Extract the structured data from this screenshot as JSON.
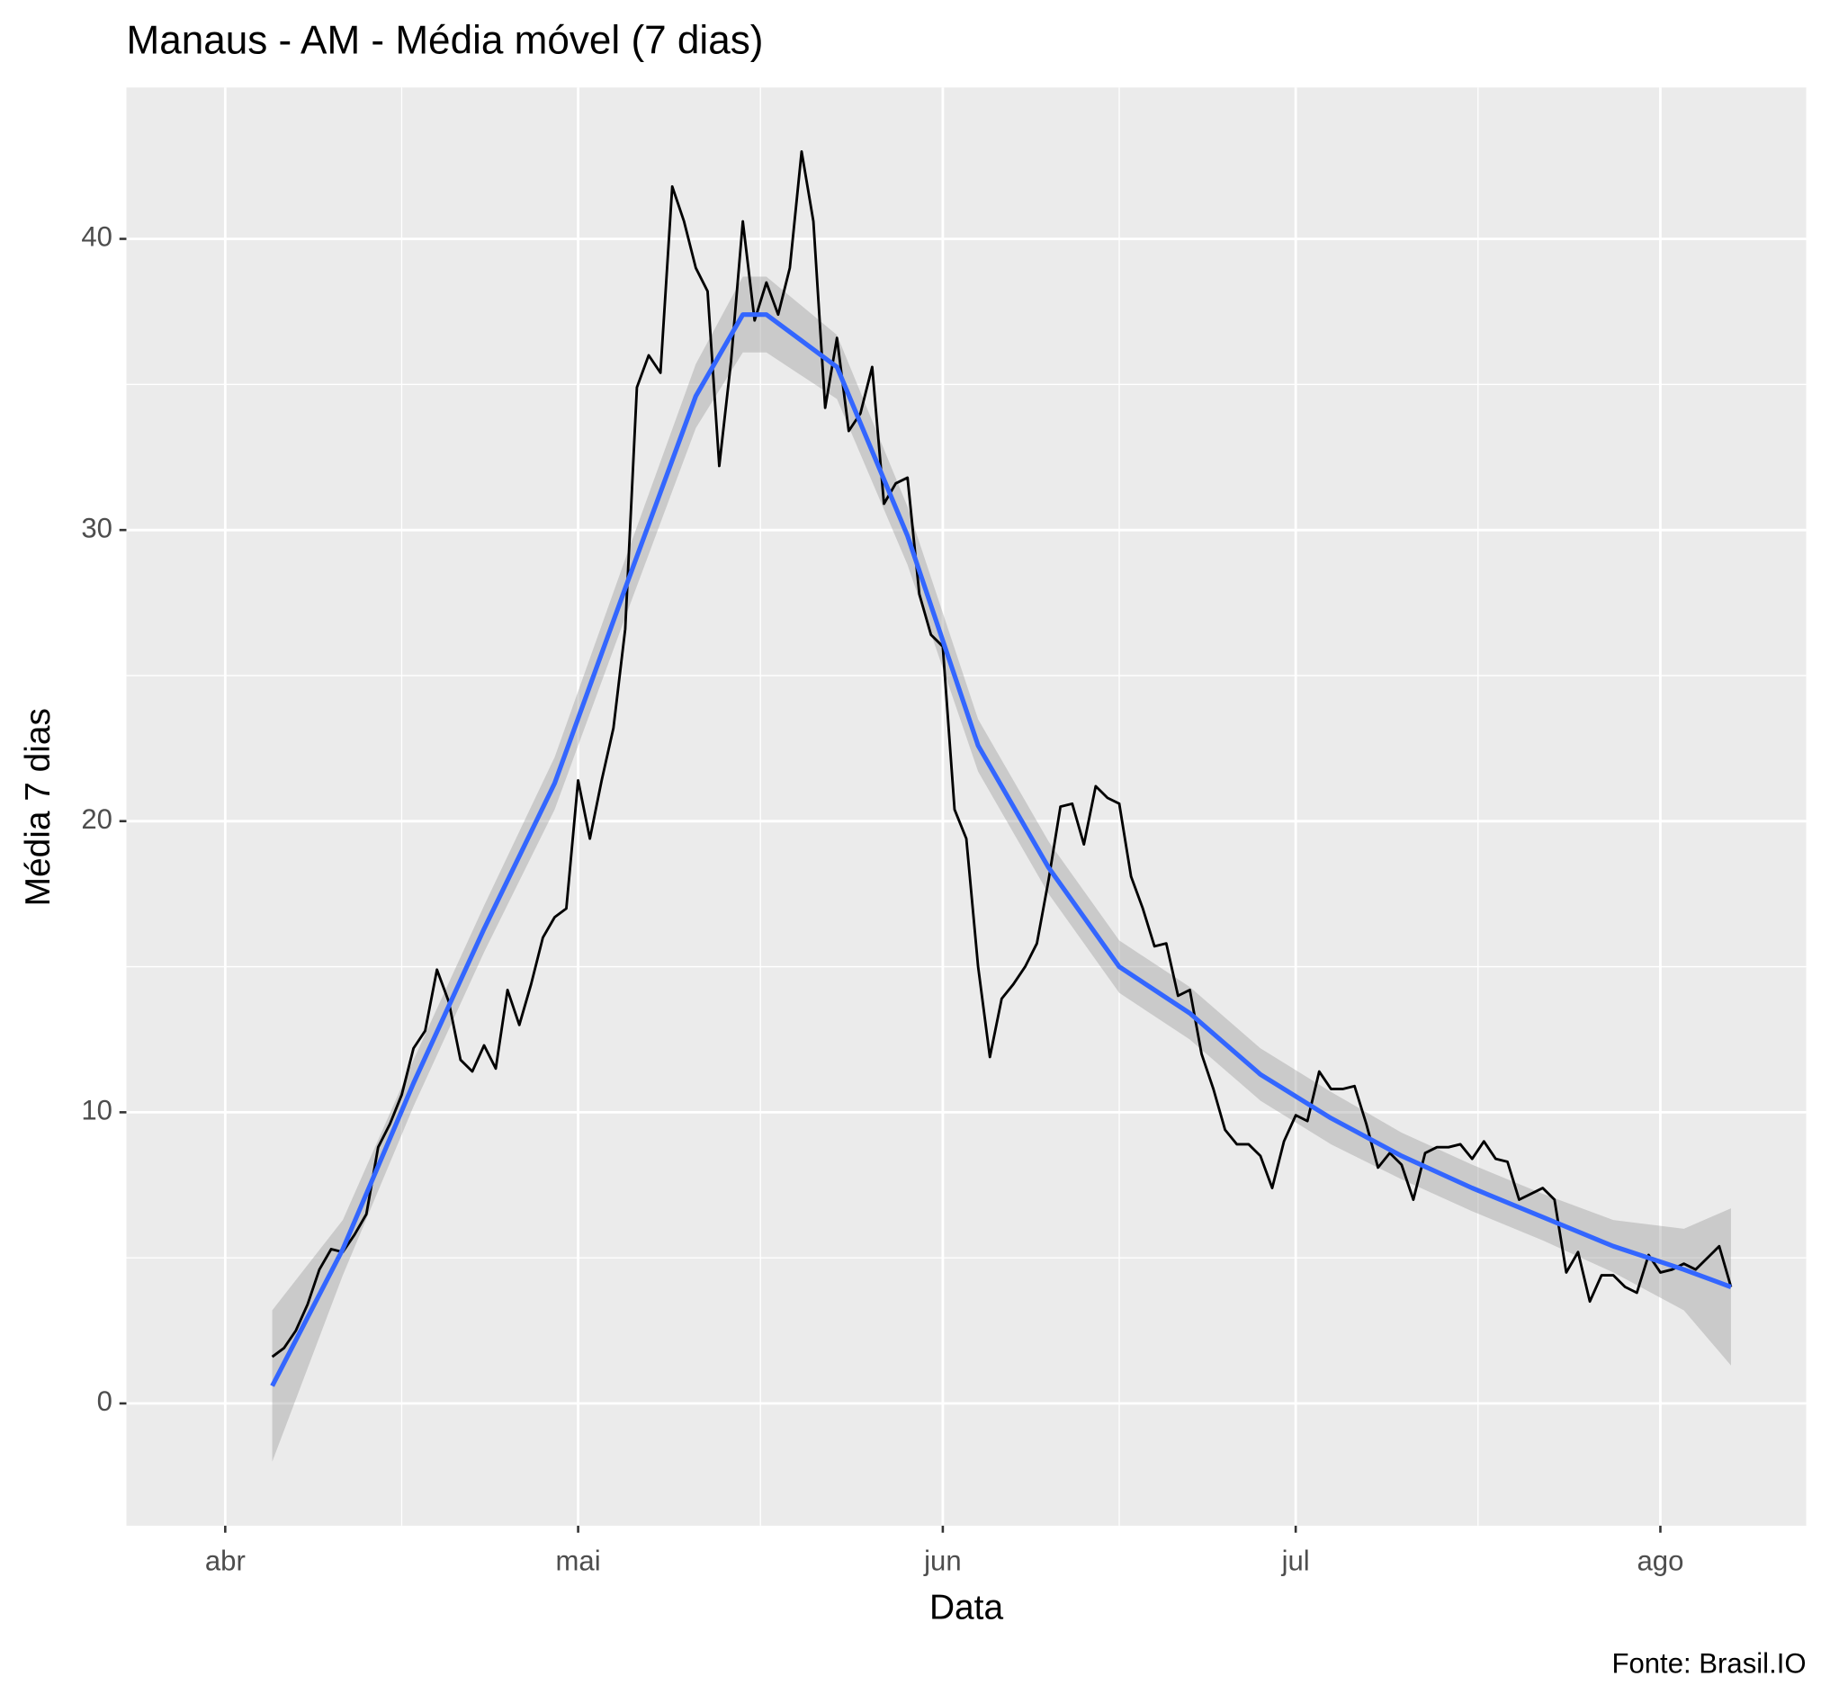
{
  "chart_data": {
    "type": "line",
    "title": "Manaus - AM - Média móvel (7 dias)",
    "x_label": "Data",
    "y_label": "Média 7 dias",
    "caption": "Fonte: Brasil.IO",
    "x": [
      4,
      5,
      6,
      7,
      8,
      9,
      10,
      11,
      12,
      13,
      14,
      15,
      16,
      17,
      18,
      19,
      20,
      21,
      22,
      23,
      24,
      25,
      26,
      27,
      28,
      29,
      30,
      31,
      32,
      33,
      34,
      35,
      36,
      37,
      38,
      39,
      40,
      41,
      42,
      43,
      44,
      45,
      46,
      47,
      48,
      49,
      50,
      51,
      52,
      53,
      54,
      55,
      56,
      57,
      58,
      59,
      60,
      61,
      62,
      63,
      64,
      65,
      66,
      67,
      68,
      69,
      70,
      71,
      72,
      73,
      74,
      75,
      76,
      77,
      78,
      79,
      80,
      81,
      82,
      83,
      84,
      85,
      86,
      87,
      88,
      89,
      90,
      91,
      92,
      93,
      94,
      95,
      96,
      97,
      98,
      99,
      100,
      101,
      102,
      103,
      104,
      105,
      106,
      107,
      108,
      109,
      110,
      111,
      112,
      113,
      114,
      115,
      116,
      117,
      118,
      119,
      120,
      121,
      122,
      123,
      124,
      125,
      126,
      127,
      128
    ],
    "series": [
      {
        "color": "#000000",
        "values": [
          1.6,
          1.9,
          2.5,
          3.4,
          4.6,
          5.3,
          5.2,
          5.8,
          6.5,
          8.8,
          9.6,
          10.6,
          12.2,
          12.8,
          14.9,
          13.8,
          11.8,
          11.4,
          12.3,
          11.5,
          14.2,
          13.0,
          14.4,
          16.0,
          16.7,
          17.0,
          21.4,
          19.4,
          21.4,
          23.2,
          26.6,
          34.9,
          36.0,
          35.4,
          41.8,
          40.6,
          39.0,
          38.2,
          32.2,
          35.8,
          40.6,
          37.2,
          38.5,
          37.4,
          39.0,
          43.0,
          40.6,
          34.2,
          36.6,
          33.4,
          34.0,
          35.6,
          30.9,
          31.6,
          31.8,
          27.8,
          26.4,
          26.0,
          20.4,
          19.4,
          15.0,
          11.9,
          13.9,
          14.4,
          15.0,
          15.8,
          18.0,
          20.5,
          20.6,
          19.2,
          21.2,
          20.8,
          20.6,
          18.1,
          17.0,
          15.7,
          15.8,
          14.0,
          14.2,
          12.0,
          10.8,
          9.4,
          8.9,
          8.9,
          8.5,
          7.4,
          9.0,
          9.9,
          9.7,
          11.4,
          10.8,
          10.8,
          10.9,
          9.6,
          8.1,
          8.6,
          8.2,
          7.0,
          8.6,
          8.8,
          8.8,
          8.9,
          8.4,
          9.0,
          8.4,
          8.3,
          7.0,
          7.2,
          7.4,
          7.0,
          4.5,
          5.2,
          3.5,
          4.4,
          4.4,
          4.0,
          3.8,
          5.1,
          4.5,
          4.6,
          4.8,
          4.6,
          5.0,
          5.4,
          4.0
        ]
      }
    ],
    "smooth": {
      "color": "#3366ff",
      "band_color": "#999999",
      "x": [
        4,
        10,
        16,
        22,
        28,
        34,
        40,
        44,
        46,
        52,
        58,
        64,
        70,
        76,
        82,
        88,
        94,
        100,
        106,
        112,
        118,
        124,
        128
      ],
      "values": [
        0.6,
        5.3,
        11.0,
        16.3,
        21.3,
        28.0,
        34.6,
        37.4,
        37.4,
        35.6,
        29.8,
        22.6,
        18.4,
        15.0,
        13.4,
        11.3,
        9.8,
        8.5,
        7.4,
        6.4,
        5.4,
        4.6,
        4.0
      ],
      "lower": [
        -2.0,
        4.4,
        10.2,
        15.5,
        20.4,
        27.0,
        33.5,
        36.1,
        36.1,
        34.5,
        28.8,
        21.7,
        17.5,
        14.1,
        12.5,
        10.4,
        8.9,
        7.7,
        6.6,
        5.6,
        4.5,
        3.2,
        1.3
      ],
      "upper": [
        3.2,
        6.3,
        11.8,
        17.1,
        22.2,
        29.0,
        35.7,
        38.7,
        38.7,
        36.7,
        30.8,
        23.5,
        19.3,
        15.9,
        14.3,
        12.2,
        10.7,
        9.3,
        8.2,
        7.2,
        6.3,
        6.0,
        6.7
      ]
    },
    "xlim": [
      -8.4,
      134.4
    ],
    "xticks": [
      {
        "value": 0,
        "label": "abr"
      },
      {
        "value": 30,
        "label": "mai"
      },
      {
        "value": 61,
        "label": "jun"
      },
      {
        "value": 91,
        "label": "jul"
      },
      {
        "value": 122,
        "label": "ago"
      }
    ],
    "xminor": [
      15,
      45.5,
      76,
      106.5
    ],
    "ylim": [
      -4.2,
      45.2
    ],
    "yticks": [
      0,
      10,
      20,
      30,
      40
    ],
    "yminor": [
      5,
      15,
      25,
      35
    ],
    "grid": true
  }
}
